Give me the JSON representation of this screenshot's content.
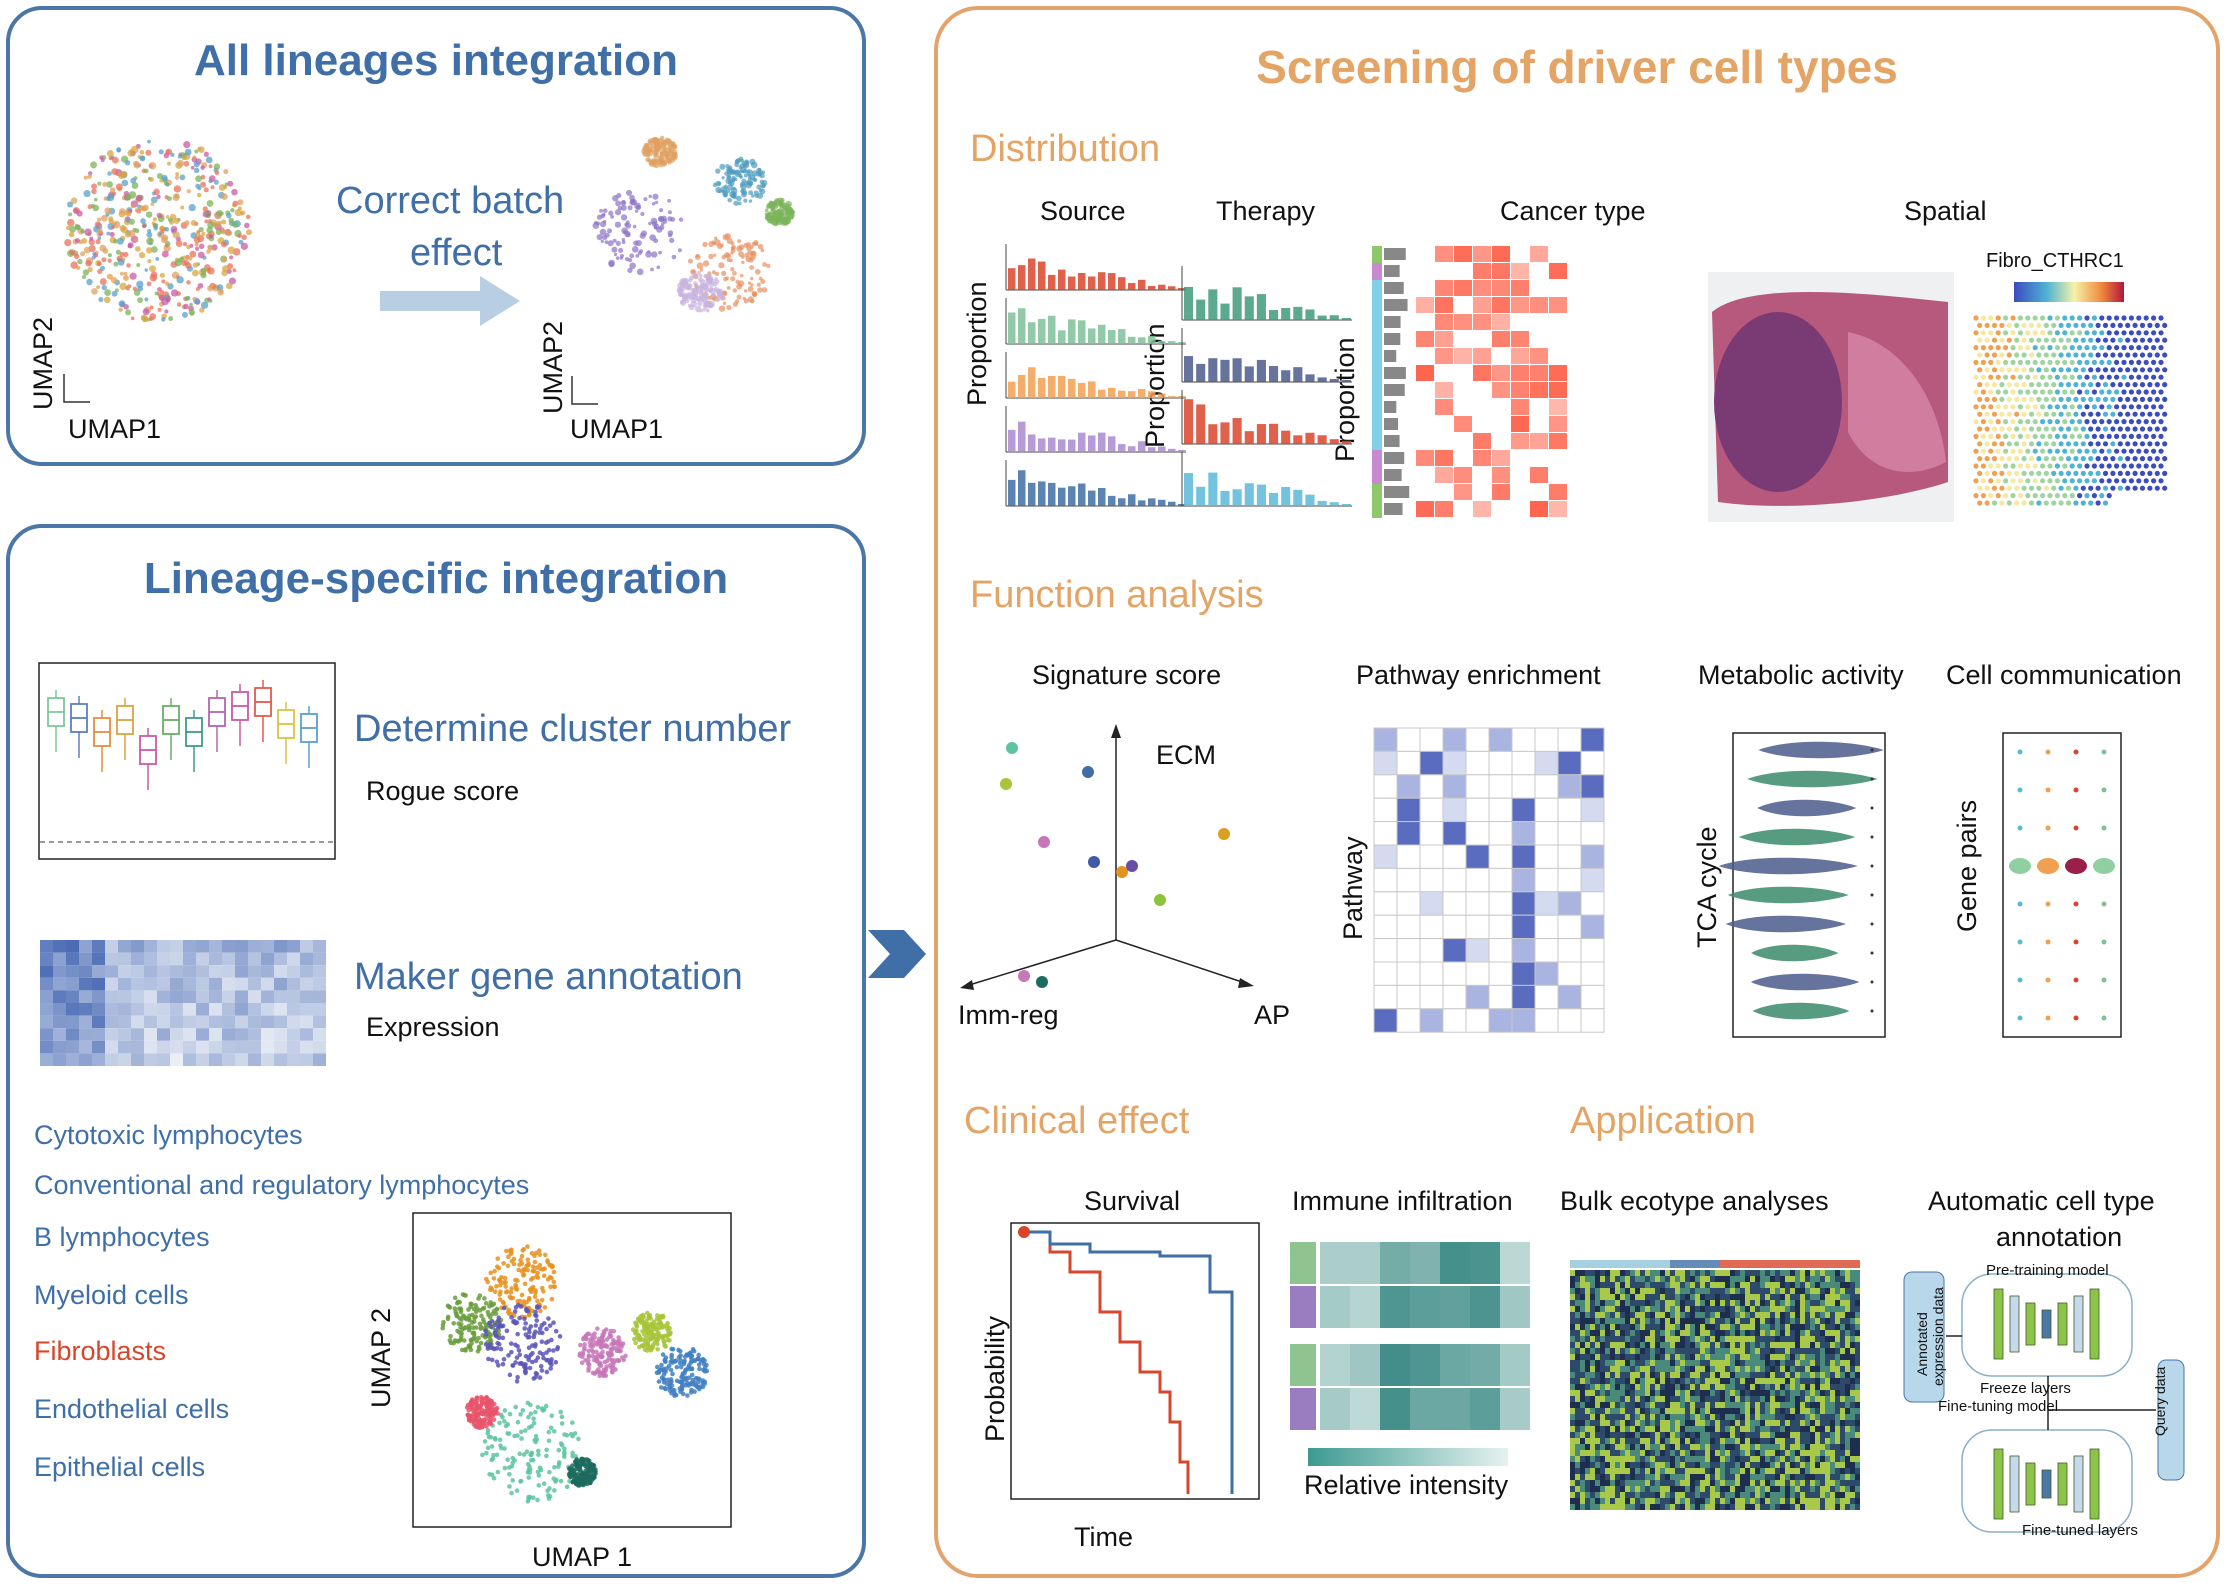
{
  "left_top": {
    "title": "All lineages integration",
    "correct_line1": "Correct batch",
    "correct_line2": "effect",
    "umap1": "UMAP1",
    "umap2": "UMAP2"
  },
  "left_bottom": {
    "title": "Lineage-specific integration",
    "cluster_title": "Determine cluster number",
    "cluster_sub": "Rogue score",
    "marker_title": "Maker gene annotation",
    "marker_sub": "Expression",
    "lineages": [
      {
        "label": "Cytotoxic lymphocytes",
        "color": "#3f6fa6"
      },
      {
        "label": "Conventional and regulatory lymphocytes",
        "color": "#3f6fa6"
      },
      {
        "label": "B lymphocytes",
        "color": "#3f6fa6"
      },
      {
        "label": "Myeloid cells",
        "color": "#3f6fa6"
      },
      {
        "label": "Fibroblasts",
        "color": "#d9452b"
      },
      {
        "label": "Endothelial cells",
        "color": "#3f6fa6"
      },
      {
        "label": "Epithelial cells",
        "color": "#3f6fa6"
      }
    ],
    "umap_x": "UMAP 1",
    "umap_y": "UMAP 2"
  },
  "right": {
    "title": "Screening of driver cell types",
    "distribution": {
      "heading": "Distribution",
      "source": "Source",
      "therapy": "Therapy",
      "cancer_type": "Cancer type",
      "spatial": "Spatial",
      "proportion": "Proportion",
      "fibro_label": "Fibro_CTHRC1"
    },
    "function": {
      "heading": "Function analysis",
      "signature": "Signature score",
      "ecm": "ECM",
      "imm_reg": "Imm-reg",
      "ap": "AP",
      "pathway_enrichment": "Pathway enrichment",
      "pathway": "Pathway",
      "metabolic": "Metabolic activity",
      "tca": "TCA cycle",
      "communication": "Cell communication",
      "gene_pairs": "Gene pairs"
    },
    "clinical": {
      "heading": "Clinical effect",
      "survival": "Survival",
      "probability": "Probability",
      "time": "Time",
      "immune": "Immune infiltration",
      "relative": "Relative intensity"
    },
    "application": {
      "heading": "Application",
      "bulk": "Bulk ecotype analyses",
      "auto_line1": "Automatic cell type",
      "auto_line2": "annotation",
      "pretraining": "Pre-training model",
      "annotated": "Annotated",
      "expression_data": "expression data",
      "freeze": "Freeze layers",
      "finetuning": "Fine-tuning model",
      "query": "Query data",
      "finetuned": "Fine-tuned layers"
    }
  },
  "colors": {
    "blue": "#3f6fa6",
    "orange": "#e3a466",
    "red": "#d9452b"
  }
}
